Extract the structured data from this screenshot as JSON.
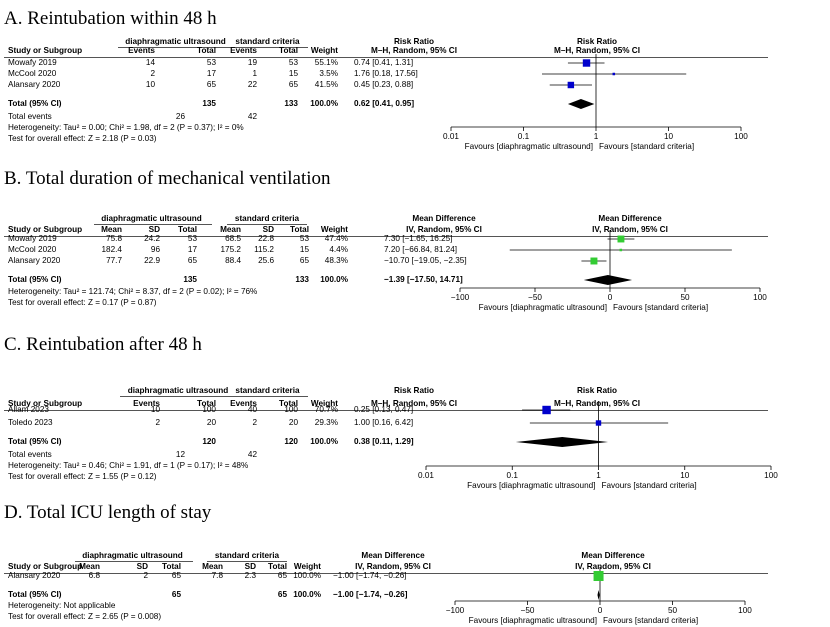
{
  "panels": [
    {
      "id": "A",
      "title": "A.   Reintubation within 48 h",
      "type": "dichotomous",
      "group1": "diaphragmatic ultrasound",
      "group2": "standard criteria",
      "headers": {
        "study": "Study or Subgroup",
        "events": "Events",
        "total": "Total",
        "weight": "Weight",
        "effect_title": "Risk Ratio",
        "effect_method": "M–H, Random, 95% CI"
      },
      "studies": [
        {
          "name": "Mowafy 2019",
          "e1": "14",
          "n1": "53",
          "e2": "19",
          "n2": "53",
          "weight": "55.1%",
          "ci": "0.74 [0.41, 1.31]"
        },
        {
          "name": "McCool 2020",
          "e1": "2",
          "n1": "17",
          "e2": "1",
          "n2": "15",
          "weight": "3.5%",
          "ci": "1.76 [0.18, 17.56]"
        },
        {
          "name": "Alansary 2020",
          "e1": "10",
          "n1": "65",
          "e2": "22",
          "n2": "65",
          "weight": "41.5%",
          "ci": "0.45 [0.23, 0.88]"
        }
      ],
      "total": {
        "label": "Total (95% CI)",
        "n1": "135",
        "n2": "133",
        "weight": "100.0%",
        "ci": "0.62 [0.41, 0.95]"
      },
      "total_events": {
        "label": "Total events",
        "e1": "26",
        "e2": "42"
      },
      "heterogeneity": "Heterogeneity: Tau² = 0.00; Chi² = 1.98, df = 2 (P = 0.37); I² = 0%",
      "overall": "Test for overall effect: Z = 2.18 (P = 0.03)",
      "favours_left": "Favours [diaphragmatic ultrasound]",
      "favours_right": "Favours [standard criteria]",
      "tick_labels": [
        "0.01",
        "0.1",
        "1",
        "10",
        "100"
      ]
    },
    {
      "id": "B",
      "title": "B.   Total duration of mechanical ventilation",
      "type": "continuous",
      "group1": "diaphragmatic ultrasound",
      "group2": "standard criteria",
      "headers": {
        "study": "Study or Subgroup",
        "mean": "Mean",
        "sd": "SD",
        "total": "Total",
        "weight": "Weight",
        "effect_title": "Mean Difference",
        "effect_method": "IV, Random, 95% CI"
      },
      "studies": [
        {
          "name": "Mowafy 2019",
          "m1": "75.8",
          "sd1": "24.2",
          "n1": "53",
          "m2": "68.5",
          "sd2": "22.8",
          "n2": "53",
          "weight": "47.4%",
          "ci": "7.30 [−1.65, 16.25]"
        },
        {
          "name": "McCool 2020",
          "m1": "182.4",
          "sd1": "96",
          "n1": "17",
          "m2": "175.2",
          "sd2": "115.2",
          "n2": "15",
          "weight": "4.4%",
          "ci": "7.20 [−66.84, 81.24]"
        },
        {
          "name": "Alansary 2020",
          "m1": "77.7",
          "sd1": "22.9",
          "n1": "65",
          "m2": "88.4",
          "sd2": "25.6",
          "n2": "65",
          "weight": "48.3%",
          "ci": "−10.70 [−19.05, −2.35]"
        }
      ],
      "total": {
        "label": "Total (95% CI)",
        "n1": "135",
        "n2": "133",
        "weight": "100.0%",
        "ci": "−1.39 [−17.50, 14.71]"
      },
      "heterogeneity": "Heterogeneity: Tau² = 121.74; Chi² = 8.37, df = 2 (P = 0.02); I² = 76%",
      "overall": "Test for overall effect: Z = 0.17 (P = 0.87)",
      "favours_left": "Favours [diaphragmatic ultrasound]",
      "favours_right": "Favours [standard criteria]",
      "tick_labels": [
        "−100",
        "−50",
        "0",
        "50",
        "100"
      ]
    },
    {
      "id": "C",
      "title": "C.   Reintubation after 48 h",
      "type": "dichotomous",
      "group1": "diaphragmatic ultrasound",
      "group2": "standard criteria",
      "headers": {
        "study": "Study or Subgroup",
        "events": "Events",
        "total": "Total",
        "weight": "Weight",
        "effect_title": "Risk Ratio",
        "effect_method": "M–H, Random, 95% CI"
      },
      "studies": [
        {
          "name": "Allam 2023",
          "e1": "10",
          "n1": "100",
          "e2": "40",
          "n2": "100",
          "weight": "70.7%",
          "ci": "0.25 [0.13, 0.47]"
        },
        {
          "name": "Toledo 2023",
          "e1": "2",
          "n1": "20",
          "e2": "2",
          "n2": "20",
          "weight": "29.3%",
          "ci": "1.00 [0.16, 6.42]"
        }
      ],
      "total": {
        "label": "Total (95% CI)",
        "n1": "120",
        "n2": "120",
        "weight": "100.0%",
        "ci": "0.38 [0.11, 1.29]"
      },
      "total_events": {
        "label": "Total events",
        "e1": "12",
        "e2": "42"
      },
      "heterogeneity": "Heterogeneity: Tau² = 0.46; Chi² = 1.91, df = 1 (P = 0.17); I² = 48%",
      "overall": "Test for overall effect: Z = 1.55 (P = 0.12)",
      "favours_left": "Favours [diaphragmatic ultrasound]",
      "favours_right": "Favours [standard criteria]",
      "tick_labels": [
        "0.01",
        "0.1",
        "1",
        "10",
        "100"
      ]
    },
    {
      "id": "D",
      "title": "D.   Total ICU length of stay",
      "type": "continuous",
      "group1": "diaphragmatic ultrasound",
      "group2": "standard criteria",
      "headers": {
        "study": "Study or Subgroup",
        "mean": "Mean",
        "sd": "SD",
        "total": "Total",
        "weight": "Weight",
        "effect_title": "Mean Difference",
        "effect_method": "IV, Random, 95% CI"
      },
      "studies": [
        {
          "name": "Alansary 2020",
          "m1": "6.8",
          "sd1": "2",
          "n1": "65",
          "m2": "7.8",
          "sd2": "2.3",
          "n2": "65",
          "weight": "100.0%",
          "ci": "−1.00 [−1.74, −0.26]"
        }
      ],
      "total": {
        "label": "Total (95% CI)",
        "n1": "65",
        "n2": "65",
        "weight": "100.0%",
        "ci": "−1.00 [−1.74, −0.26]"
      },
      "heterogeneity": "Heterogeneity: Not applicable",
      "overall": "Test for overall effect: Z = 2.65 (P = 0.008)",
      "favours_left": "Favours [diaphragmatic ultrasound]",
      "favours_right": "Favours [standard criteria]",
      "tick_labels": [
        "−100",
        "−50",
        "0",
        "50",
        "100"
      ]
    }
  ],
  "chart_data": [
    {
      "type": "forest",
      "scale": "log",
      "xlim": [
        0.01,
        100
      ],
      "marker_color": "#0000cc",
      "title": "Reintubation within 48 h",
      "effect_measure": "Risk Ratio",
      "ticks": [
        0.01,
        0.1,
        1,
        10,
        100
      ],
      "studies": [
        {
          "name": "Mowafy 2019",
          "est": 0.74,
          "lo": 0.41,
          "hi": 1.31,
          "weight": 55.1
        },
        {
          "name": "McCool 2020",
          "est": 1.76,
          "lo": 0.18,
          "hi": 17.56,
          "weight": 3.5
        },
        {
          "name": "Alansary 2020",
          "est": 0.45,
          "lo": 0.23,
          "hi": 0.88,
          "weight": 41.5
        }
      ],
      "pooled": {
        "est": 0.62,
        "lo": 0.41,
        "hi": 0.95
      }
    },
    {
      "type": "forest",
      "scale": "linear",
      "xlim": [
        -100,
        100
      ],
      "marker_color": "#33cc33",
      "title": "Total duration of mechanical ventilation",
      "effect_measure": "Mean Difference",
      "ticks": [
        -100,
        -50,
        0,
        50,
        100
      ],
      "studies": [
        {
          "name": "Mowafy 2019",
          "est": 7.3,
          "lo": -1.65,
          "hi": 16.25,
          "weight": 47.4
        },
        {
          "name": "McCool 2020",
          "est": 7.2,
          "lo": -66.84,
          "hi": 81.24,
          "weight": 4.4
        },
        {
          "name": "Alansary 2020",
          "est": -10.7,
          "lo": -19.05,
          "hi": -2.35,
          "weight": 48.3
        }
      ],
      "pooled": {
        "est": -1.39,
        "lo": -17.5,
        "hi": 14.71
      }
    },
    {
      "type": "forest",
      "scale": "log",
      "xlim": [
        0.01,
        100
      ],
      "marker_color": "#0000cc",
      "title": "Reintubation after 48 h",
      "effect_measure": "Risk Ratio",
      "ticks": [
        0.01,
        0.1,
        1,
        10,
        100
      ],
      "studies": [
        {
          "name": "Allam 2023",
          "est": 0.25,
          "lo": 0.13,
          "hi": 0.47,
          "weight": 70.7
        },
        {
          "name": "Toledo 2023",
          "est": 1.0,
          "lo": 0.16,
          "hi": 6.42,
          "weight": 29.3
        }
      ],
      "pooled": {
        "est": 0.38,
        "lo": 0.11,
        "hi": 1.29
      }
    },
    {
      "type": "forest",
      "scale": "linear",
      "xlim": [
        -100,
        100
      ],
      "marker_color": "#33cc33",
      "title": "Total ICU length of stay",
      "effect_measure": "Mean Difference",
      "ticks": [
        -100,
        -50,
        0,
        50,
        100
      ],
      "studies": [
        {
          "name": "Alansary 2020",
          "est": -1.0,
          "lo": -1.74,
          "hi": -0.26,
          "weight": 100.0
        }
      ],
      "pooled": {
        "est": -1.0,
        "lo": -1.74,
        "hi": -0.26
      }
    }
  ]
}
